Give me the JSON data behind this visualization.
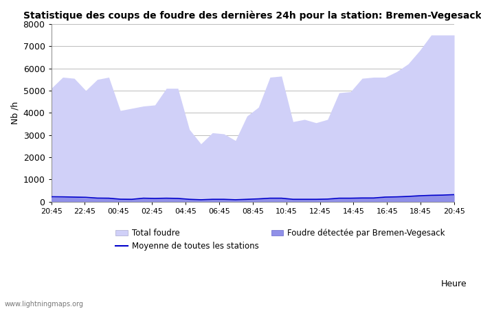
{
  "title": "Statistique des coups de foudre des dernières 24h pour la station: Bremen-Vegesack",
  "xlabel": "Heure",
  "ylabel": "Nb /h",
  "ylim": [
    0,
    8000
  ],
  "yticks": [
    0,
    1000,
    2000,
    3000,
    4000,
    5000,
    6000,
    7000,
    8000
  ],
  "xtick_labels": [
    "20:45",
    "22:45",
    "00:45",
    "02:45",
    "04:45",
    "06:45",
    "08:45",
    "10:45",
    "12:45",
    "14:45",
    "16:45",
    "18:45",
    "20:45"
  ],
  "total_foudre_color": "#d0d0f8",
  "local_foudre_color": "#9090e8",
  "moyenne_color": "#0000cc",
  "background_color": "#ffffff",
  "grid_color": "#bbbbbb",
  "watermark": "www.lightningmaps.org",
  "legend": {
    "total_foudre": "Total foudre",
    "moyenne": "Moyenne de toutes les stations",
    "local": "Foudre détectée par Bremen-Vegesack"
  },
  "total_values": [
    5100,
    5600,
    5550,
    5000,
    5500,
    5600,
    4100,
    4200,
    4300,
    4350,
    5100,
    5100,
    3250,
    2600,
    3100,
    3050,
    2750,
    3850,
    4250,
    5600,
    5650,
    3600,
    3700,
    3550,
    3700,
    4900,
    4950,
    5550,
    5600,
    5600,
    5850,
    6200,
    6800,
    7500,
    7500,
    7500
  ],
  "local_values": [
    200,
    200,
    200,
    170,
    150,
    150,
    100,
    100,
    150,
    140,
    150,
    140,
    100,
    80,
    100,
    100,
    80,
    100,
    120,
    150,
    150,
    100,
    100,
    100,
    110,
    150,
    150,
    160,
    160,
    200,
    210,
    230,
    260,
    280,
    290,
    310
  ],
  "moyenne_values": [
    220,
    215,
    205,
    195,
    160,
    155,
    110,
    105,
    155,
    145,
    155,
    145,
    105,
    85,
    105,
    105,
    85,
    105,
    125,
    155,
    155,
    105,
    105,
    105,
    115,
    155,
    155,
    165,
    165,
    205,
    215,
    235,
    265,
    285,
    295,
    315
  ]
}
